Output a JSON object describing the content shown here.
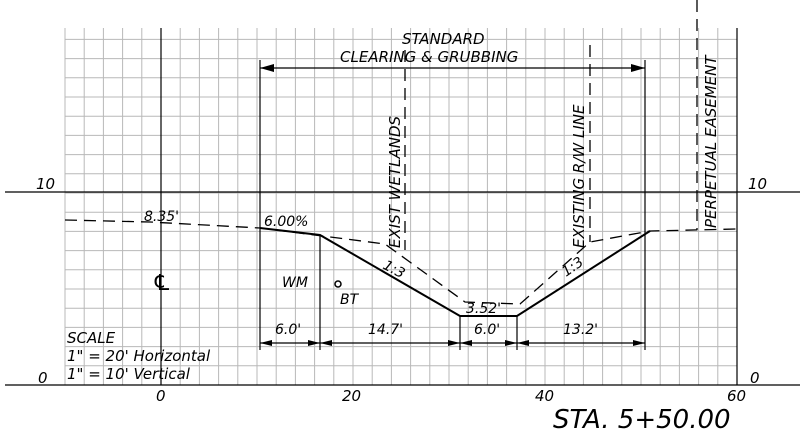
{
  "axes": {
    "x_ticks": [
      {
        "value": 0,
        "label": "0"
      },
      {
        "value": 20,
        "label": "20"
      },
      {
        "value": 40,
        "label": "40"
      },
      {
        "value": 60,
        "label": "60"
      }
    ],
    "y_left_labels": [
      {
        "value": 10,
        "label": "10"
      },
      {
        "value": 0,
        "label": "0"
      }
    ],
    "y_right_labels": [
      {
        "value": 10,
        "label": "10"
      },
      {
        "value": 0,
        "label": "0"
      }
    ]
  },
  "annotations": {
    "clearing_line1": "STANDARD",
    "clearing_line2": "CLEARING & GRUBBING",
    "wetlands": "EXIST WETLANDS",
    "row_line": "EXISTING R/W LINE",
    "easement": "PERPETUAL EASEMENT",
    "dist_left": "8.35'",
    "grade": "6.00%",
    "slope_left": "1:3",
    "slope_right": "1:3",
    "bottom_width": "3.52'",
    "wm": "WM",
    "bt": "BT",
    "centerline": "℄"
  },
  "dimensions": [
    {
      "label": "6.0'"
    },
    {
      "label": "14.7'"
    },
    {
      "label": "6.0'"
    },
    {
      "label": "13.2'"
    }
  ],
  "scale": {
    "title": "SCALE",
    "horizontal": "1\" = 20' Horizontal",
    "vertical": "1\" = 10' Vertical"
  },
  "station": "STA. 5+50.00"
}
